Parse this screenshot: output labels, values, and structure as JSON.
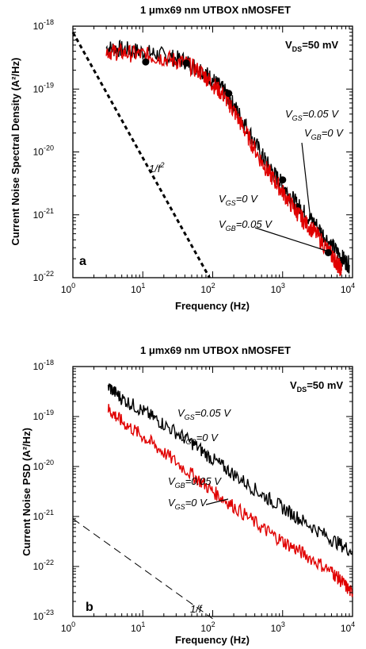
{
  "chart_data": [
    {
      "panel": "a",
      "type": "line",
      "title": "1 μmx69 nm UTBOX nMOSFET",
      "xlabel": "Frequency (Hz)",
      "ylabel": "Current Noise Spectral Density (A²/Hz)",
      "xscale": "log",
      "yscale": "log",
      "xlim": [
        1,
        10000
      ],
      "ylim": [
        1e-22,
        1e-18
      ],
      "x_ticks": [
        {
          "base": "10",
          "exp": "0"
        },
        {
          "base": "10",
          "exp": "1"
        },
        {
          "base": "10",
          "exp": "2"
        },
        {
          "base": "10",
          "exp": "3"
        },
        {
          "base": "10",
          "exp": "4"
        }
      ],
      "y_ticks": [
        {
          "base": "10",
          "exp": "-22"
        },
        {
          "base": "10",
          "exp": "-21"
        },
        {
          "base": "10",
          "exp": "-20"
        },
        {
          "base": "10",
          "exp": "-19"
        },
        {
          "base": "10",
          "exp": "-18"
        }
      ],
      "condition_label": {
        "main": "V",
        "sub": "DS",
        "rest": "=50 mV"
      },
      "series": [
        {
          "label": [
            "V|GS|=0.05 V",
            "V|GB|=0 V"
          ],
          "color": "#000000",
          "points": [
            [
              3,
              4.5e-19
            ],
            [
              5,
              4.3e-19
            ],
            [
              10,
              3.9e-19
            ],
            [
              20,
              3.4e-19
            ],
            [
              40,
              2.8e-19
            ],
            [
              70,
              2e-19
            ],
            [
              100,
              1.4e-19
            ],
            [
              150,
              9e-20
            ],
            [
              200,
              5.5e-20
            ],
            [
              300,
              2.6e-20
            ],
            [
              500,
              9e-21
            ],
            [
              700,
              5e-21
            ],
            [
              1000,
              3e-21
            ],
            [
              1500,
              1.6e-21
            ],
            [
              2000,
              1.1e-21
            ],
            [
              3000,
              7e-22
            ],
            [
              5000,
              3.3e-22
            ],
            [
              7000,
              2.1e-22
            ],
            [
              9000,
              1.6e-22
            ]
          ]
        },
        {
          "label": [
            "V|GS|=0 V",
            "V|GB|=0.05 V"
          ],
          "color": "#e00000",
          "points": [
            [
              3,
              4e-19
            ],
            [
              5,
              3.8e-19
            ],
            [
              10,
              3.5e-19
            ],
            [
              20,
              3.1e-19
            ],
            [
              40,
              2.6e-19
            ],
            [
              70,
              1.8e-19
            ],
            [
              100,
              1.2e-19
            ],
            [
              150,
              7.5e-20
            ],
            [
              200,
              4.5e-20
            ],
            [
              300,
              2e-20
            ],
            [
              500,
              7e-21
            ],
            [
              700,
              4e-21
            ],
            [
              1000,
              2.3e-21
            ],
            [
              1500,
              1.2e-21
            ],
            [
              2000,
              8e-22
            ],
            [
              3000,
              5e-22
            ],
            [
              5000,
              2.3e-22
            ],
            [
              6000,
              1.7e-22
            ],
            [
              7000,
              1.3e-22
            ]
          ]
        }
      ],
      "fit_markers": [
        [
          11,
          2.7e-19
        ],
        [
          42,
          2.6e-19
        ],
        [
          170,
          8.5e-20
        ],
        [
          1000,
          3.6e-21
        ],
        [
          4500,
          2.5e-22
        ]
      ],
      "reference_line": {
        "label": {
          "main": "1/f",
          "sup": "2"
        },
        "points": [
          [
            1,
            8e-19
          ],
          [
            90,
            1e-22
          ]
        ]
      },
      "panel_letter": "a"
    },
    {
      "panel": "b",
      "type": "line",
      "title": "1 μmx69 nm UTBOX nMOSFET",
      "xlabel": "Frequency (Hz)",
      "ylabel": "Current Noise PSD (A²/Hz)",
      "xscale": "log",
      "yscale": "log",
      "xlim": [
        1,
        10000
      ],
      "ylim": [
        1e-23,
        1e-18
      ],
      "x_ticks": [
        {
          "base": "10",
          "exp": "0"
        },
        {
          "base": "10",
          "exp": "1"
        },
        {
          "base": "10",
          "exp": "2"
        },
        {
          "base": "10",
          "exp": "3"
        },
        {
          "base": "10",
          "exp": "4"
        }
      ],
      "y_ticks": [
        {
          "base": "10",
          "exp": "-23"
        },
        {
          "base": "10",
          "exp": "-22"
        },
        {
          "base": "10",
          "exp": "-21"
        },
        {
          "base": "10",
          "exp": "-20"
        },
        {
          "base": "10",
          "exp": "-19"
        },
        {
          "base": "10",
          "exp": "-18"
        }
      ],
      "condition_label": {
        "main": "V",
        "sub": "DS",
        "rest": "=50 mV"
      },
      "series": [
        {
          "label": [
            "V|GS|=0.05 V",
            "V|GB|=0 V"
          ],
          "color": "#000000",
          "points": [
            [
              3.2,
              4e-19
            ],
            [
              5,
              2.3e-19
            ],
            [
              10,
              1.3e-19
            ],
            [
              20,
              7e-20
            ],
            [
              50,
              3e-20
            ],
            [
              100,
              1.4e-20
            ],
            [
              200,
              7e-21
            ],
            [
              500,
              2.8e-21
            ],
            [
              1000,
              1.5e-21
            ],
            [
              2000,
              8e-22
            ],
            [
              5000,
              3.5e-22
            ],
            [
              10000,
              2e-22
            ]
          ]
        },
        {
          "label": [
            "V|GB|=0.05 V",
            "V|GS|=0 V"
          ],
          "color": "#e00000",
          "points": [
            [
              3.2,
              1.4e-19
            ],
            [
              5,
              8e-20
            ],
            [
              10,
              4e-20
            ],
            [
              20,
              1.9e-20
            ],
            [
              50,
              7e-21
            ],
            [
              100,
              3.2e-21
            ],
            [
              200,
              1.6e-21
            ],
            [
              500,
              6e-22
            ],
            [
              1000,
              3.2e-22
            ],
            [
              2000,
              1.8e-22
            ],
            [
              5000,
              8e-23
            ],
            [
              7000,
              5e-23
            ],
            [
              10000,
              2.8e-23
            ]
          ]
        }
      ],
      "reference_line": {
        "label": {
          "main": "1/f",
          "sup": ""
        },
        "points": [
          [
            1,
            9e-22
          ],
          [
            100,
            9e-24
          ]
        ]
      },
      "panel_letter": "b"
    }
  ]
}
